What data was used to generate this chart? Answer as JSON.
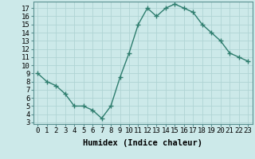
{
  "x": [
    0,
    1,
    2,
    3,
    4,
    5,
    6,
    7,
    8,
    9,
    10,
    11,
    12,
    13,
    14,
    15,
    16,
    17,
    18,
    19,
    20,
    21,
    22,
    23
  ],
  "y": [
    9,
    8,
    7.5,
    6.5,
    5,
    5,
    4.5,
    3.5,
    5,
    8.5,
    11.5,
    15,
    17,
    16,
    17,
    17.5,
    17,
    16.5,
    15,
    14,
    13,
    11.5,
    11,
    10.5
  ],
  "line_color": "#2e7d6e",
  "marker": "+",
  "bg_color": "#cce9e9",
  "grid_color": "#b0d4d4",
  "xlabel": "Humidex (Indice chaleur)",
  "ylabel_ticks": [
    3,
    4,
    5,
    6,
    7,
    8,
    9,
    10,
    11,
    12,
    13,
    14,
    15,
    16,
    17
  ],
  "xlim": [
    -0.5,
    23.5
  ],
  "ylim": [
    2.8,
    17.8
  ],
  "tick_fontsize": 6.5,
  "xlabel_fontsize": 7.5,
  "linewidth": 1.0,
  "markersize": 4,
  "markeredgewidth": 1.0
}
